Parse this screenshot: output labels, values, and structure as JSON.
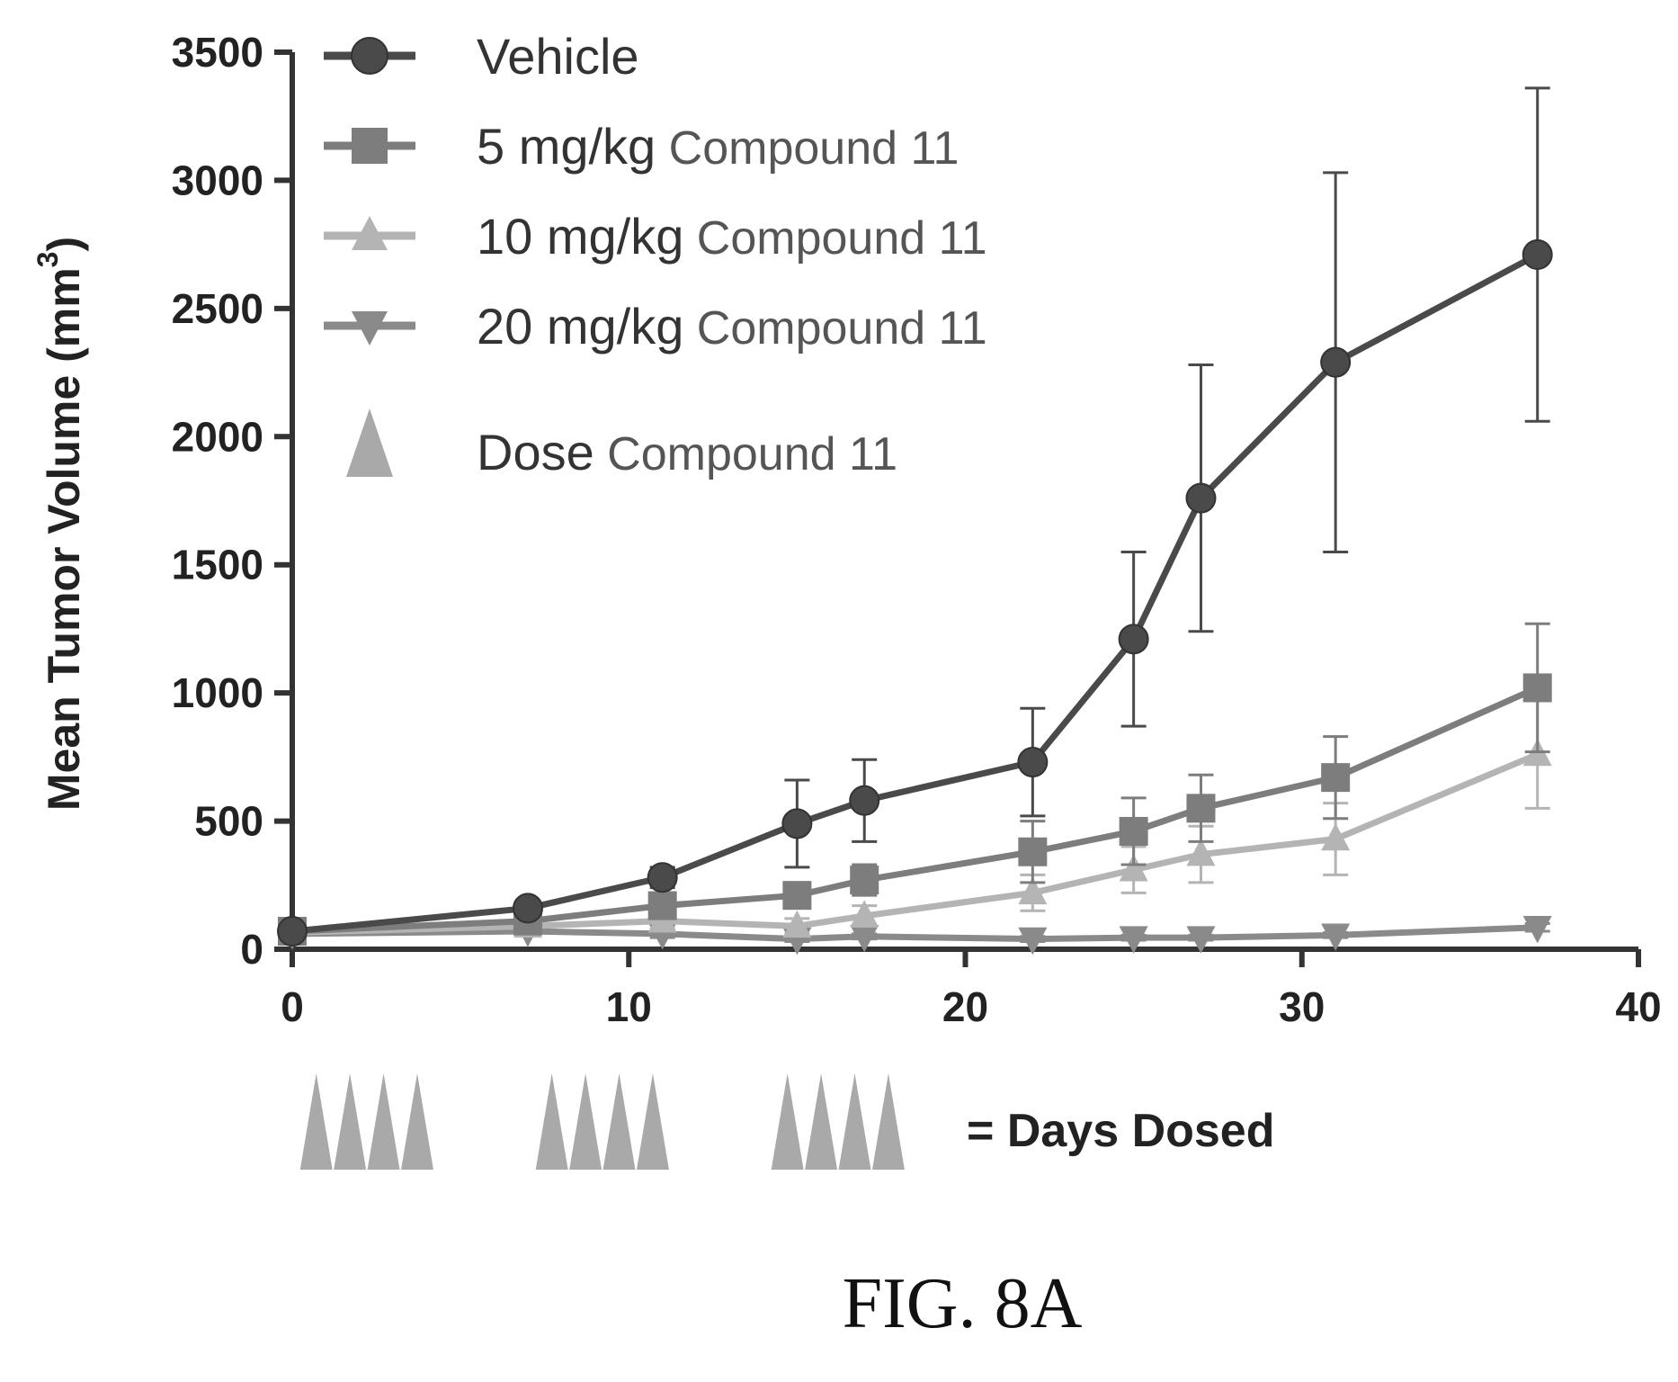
{
  "figure_label": "FIG. 8A",
  "dose_note": "= Days Dosed",
  "chart_data": {
    "type": "line",
    "ylabel": "Mean Tumor Volume (mm",
    "ylabel_superscript": "3",
    "ylabel_close": ")",
    "xlim": [
      0,
      40
    ],
    "ylim": [
      0,
      3500
    ],
    "xticks": [
      0,
      10,
      20,
      30,
      40
    ],
    "yticks": [
      0,
      500,
      1000,
      1500,
      2000,
      2500,
      3000,
      3500
    ],
    "xtick_labels": [
      "0",
      "10",
      "20",
      "30",
      "40"
    ],
    "ytick_labels": [
      "0",
      "500",
      "1000",
      "1500",
      "2000",
      "2500",
      "3000",
      "3500"
    ],
    "legend_position": "top-left",
    "grid": false,
    "series": [
      {
        "name": "Vehicle",
        "name_suffix": "",
        "marker": "circle",
        "color": "#4a4a4a",
        "x": [
          0,
          7,
          11,
          15,
          17,
          22,
          25,
          27,
          31,
          37
        ],
        "y": [
          70,
          160,
          280,
          490,
          580,
          730,
          1210,
          1760,
          2290,
          2710
        ],
        "err": [
          20,
          30,
          40,
          170,
          160,
          210,
          340,
          520,
          740,
          650
        ]
      },
      {
        "name": "5 mg/kg",
        "name_suffix": "Compound 11",
        "marker": "square",
        "color": "#7d7d7d",
        "x": [
          0,
          7,
          11,
          15,
          17,
          22,
          25,
          27,
          31,
          37
        ],
        "y": [
          70,
          110,
          170,
          210,
          270,
          380,
          460,
          550,
          670,
          1020
        ],
        "err": [
          20,
          25,
          40,
          50,
          60,
          120,
          130,
          130,
          160,
          250
        ]
      },
      {
        "name": "10 mg/kg",
        "name_suffix": "Compound 11",
        "marker": "triangle-up",
        "color": "#b4b4b4",
        "x": [
          0,
          7,
          11,
          15,
          17,
          22,
          25,
          27,
          31,
          37
        ],
        "y": [
          65,
          90,
          110,
          90,
          130,
          220,
          310,
          370,
          430,
          760
        ],
        "err": [
          20,
          25,
          30,
          30,
          40,
          70,
          90,
          110,
          140,
          210
        ]
      },
      {
        "name": "20 mg/kg",
        "name_suffix": "Compound 11",
        "marker": "triangle-down",
        "color": "#8a8a8a",
        "x": [
          0,
          7,
          11,
          15,
          17,
          22,
          25,
          27,
          31,
          37
        ],
        "y": [
          60,
          70,
          60,
          40,
          50,
          40,
          45,
          45,
          55,
          85
        ],
        "err": [
          15,
          15,
          15,
          10,
          10,
          10,
          10,
          10,
          10,
          15
        ]
      }
    ],
    "dose_legend": {
      "name": "Dose",
      "name_suffix": "Compound 11",
      "color": "#a9a9a9"
    },
    "dose_days": [
      0,
      1,
      2,
      3,
      7,
      8,
      9,
      10,
      14,
      15,
      16,
      17
    ]
  }
}
